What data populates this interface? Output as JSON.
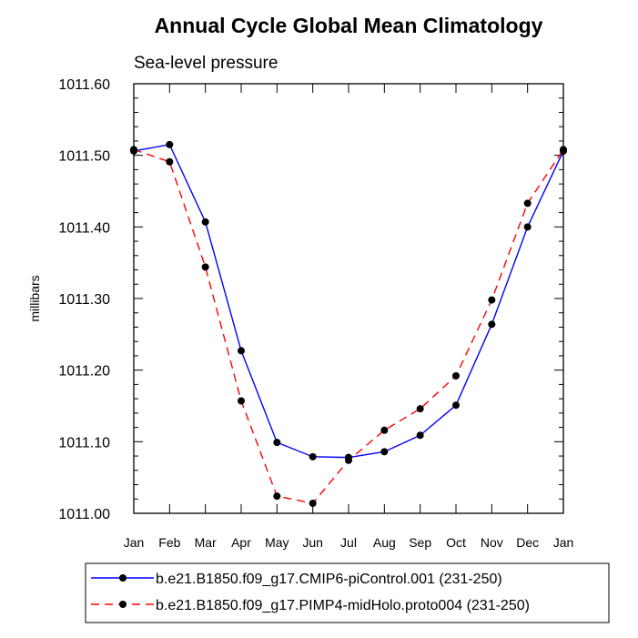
{
  "chart_data": {
    "type": "line",
    "title": "Annual Cycle Global Mean Climatology",
    "subtitle": "Sea-level pressure",
    "ylabel": "millibars",
    "xlabel": "",
    "categories": [
      "Jan",
      "Feb",
      "Mar",
      "Apr",
      "May",
      "Jun",
      "Jul",
      "Aug",
      "Sep",
      "Oct",
      "Nov",
      "Dec",
      "Jan"
    ],
    "ylim": [
      1011.0,
      1011.6
    ],
    "yticks": [
      "1011.00",
      "1011.10",
      "1011.20",
      "1011.30",
      "1011.40",
      "1011.50",
      "1011.60"
    ],
    "grid": false,
    "legend_position": "bottom",
    "series": [
      {
        "name": "b.e21.B1850.f09_g17.CMIP6-piControl.001 (231-250)",
        "color": "#0000ff",
        "dash": "solid",
        "values": [
          1011.506,
          1011.515,
          1011.407,
          1011.227,
          1011.099,
          1011.079,
          1011.078,
          1011.086,
          1011.109,
          1011.151,
          1011.264,
          1011.4,
          1011.506
        ]
      },
      {
        "name": "b.e21.B1850.f09_g17.PIMP4-midHolo.proto004 (231-250)",
        "color": "#ff0000",
        "dash": "dashed",
        "values": [
          1011.508,
          1011.491,
          1011.344,
          1011.157,
          1011.024,
          1011.014,
          1011.074,
          1011.116,
          1011.146,
          1011.192,
          1011.298,
          1011.433,
          1011.508
        ]
      }
    ]
  }
}
